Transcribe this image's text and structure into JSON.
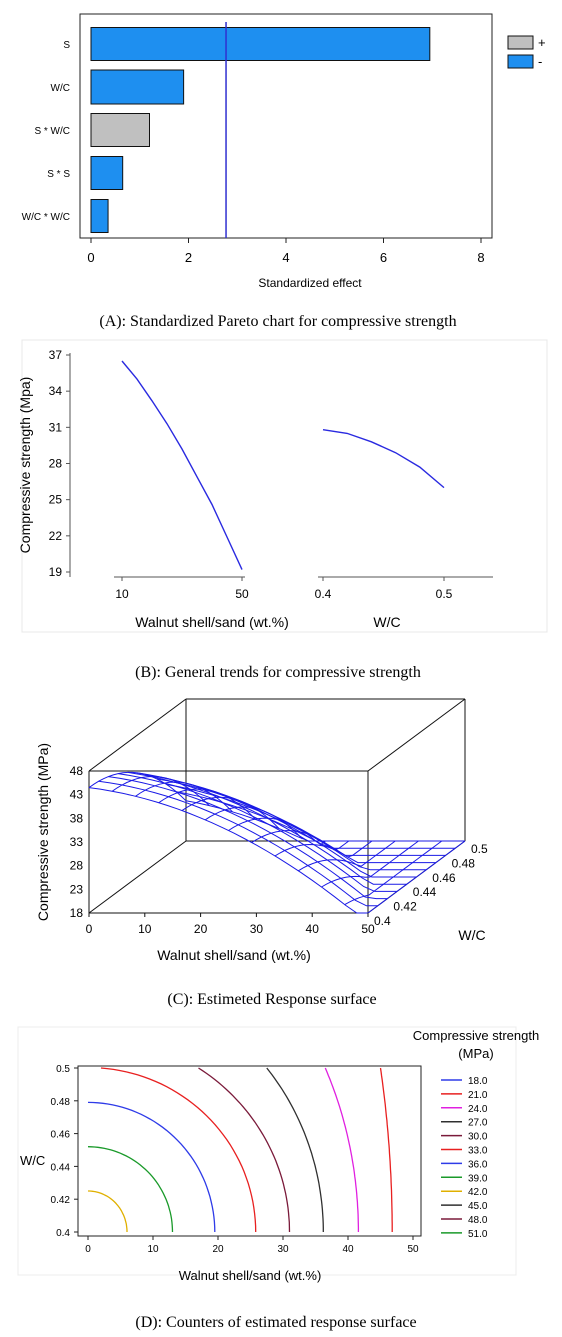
{
  "panels": {
    "a": {
      "caption": "(A): Standardized Pareto chart for compressive strength",
      "chart_data": {
        "type": "bar",
        "orientation": "horizontal",
        "categories": [
          "S",
          "W/C",
          "S * W/C",
          "S * S",
          "W/C * W/C"
        ],
        "values": [
          6.95,
          1.9,
          1.2,
          0.65,
          0.35
        ],
        "signs": [
          "-",
          "-",
          "+",
          "-",
          "-"
        ],
        "xlabel": "Standardized effect",
        "xlim": [
          0,
          8
        ],
        "xticks": [
          0,
          2,
          4,
          6,
          8
        ],
        "reference_line": 2.77,
        "legend": [
          {
            "label": "+",
            "color": "#c0c0c0"
          },
          {
            "label": "-",
            "color": "#1e8ff0"
          }
        ],
        "legend_position": "right"
      }
    },
    "b": {
      "caption": "(B): General trends for compressive strength",
      "chart_data": {
        "type": "line",
        "ylabel": "Compressive strength (Mpa)",
        "ylim": [
          19,
          37
        ],
        "yticks": [
          19,
          22,
          25,
          28,
          31,
          34,
          37
        ],
        "subplots": [
          {
            "xlabel": "Walnut shell/sand (wt.%)",
            "xticks": [
              10,
              50
            ],
            "x": [
              10,
              15,
              20,
              25,
              30,
              35,
              40,
              45,
              50
            ],
            "y": [
              36.5,
              35.0,
              33.2,
              31.3,
              29.2,
              26.9,
              24.6,
              21.9,
              19.2
            ]
          },
          {
            "xlabel": "W/C",
            "xticks": [
              0.4,
              0.5
            ],
            "x": [
              0.4,
              0.42,
              0.44,
              0.46,
              0.48,
              0.5
            ],
            "y": [
              30.8,
              30.5,
              29.8,
              28.9,
              27.7,
              26.0
            ]
          }
        ]
      }
    },
    "c": {
      "caption": "(C): Estimeted Response surface",
      "chart_data": {
        "type": "surface",
        "xlabel": "Walnut shell/sand (wt.%)",
        "ylabel": "W/C",
        "zlabel": "Compressive strength (MPa)",
        "xticks": [
          0,
          10,
          20,
          30,
          40,
          50
        ],
        "yticks": [
          0.4,
          0.42,
          0.44,
          0.46,
          0.48,
          0.5
        ],
        "zticks": [
          18,
          23,
          28,
          33,
          38,
          43,
          48
        ],
        "xlim": [
          0,
          50
        ],
        "ylim": [
          0.4,
          0.5
        ],
        "zlim": [
          18,
          48
        ],
        "surface_color": "#1a1ae6"
      }
    },
    "d": {
      "caption": "(D): Counters of estimated response surface",
      "chart_data": {
        "type": "contour",
        "xlabel": "Walnut shell/sand (wt.%)",
        "ylabel": "W/C",
        "xlim": [
          0,
          50
        ],
        "ylim": [
          0.4,
          0.5
        ],
        "xticks": [
          0,
          10,
          20,
          30,
          40,
          50
        ],
        "yticks": [
          0.4,
          0.42,
          0.44,
          0.46,
          0.48,
          0.5
        ],
        "legend_title": [
          "Compressive strength",
          "(MPa)"
        ],
        "levels": [
          {
            "label": "18.0",
            "color": "#2e3be8"
          },
          {
            "label": "21.0",
            "color": "#e82020"
          },
          {
            "label": "24.0",
            "color": "#e020e0"
          },
          {
            "label": "27.0",
            "color": "#303030"
          },
          {
            "label": "30.0",
            "color": "#7a1a3a"
          },
          {
            "label": "33.0",
            "color": "#e82020"
          },
          {
            "label": "36.0",
            "color": "#2e3be8"
          },
          {
            "label": "39.0",
            "color": "#1a9a2a"
          },
          {
            "label": "42.0",
            "color": "#e0b000"
          },
          {
            "label": "45.0",
            "color": "#303030"
          },
          {
            "label": "48.0",
            "color": "#7a1a3a"
          },
          {
            "label": "51.0",
            "color": "#1a9a2a"
          }
        ],
        "contours": [
          {
            "color": "#e0b000",
            "x_at_w04": 6.0,
            "w_at_x0": 0.425
          },
          {
            "color": "#1a9a2a",
            "x_at_w04": 13.0,
            "w_at_x0": 0.452
          },
          {
            "color": "#2e3be8",
            "x_at_w04": 19.5,
            "w_at_x0": 0.479
          },
          {
            "color": "#e82020",
            "x_at_w04": 25.8,
            "x_at_w05": 2.0
          },
          {
            "color": "#7a1a3a",
            "x_at_w04": 31.0,
            "x_at_w05": 17.0
          },
          {
            "color": "#303030",
            "x_at_w04": 36.2,
            "x_at_w05": 27.5
          },
          {
            "color": "#e020e0",
            "x_at_w04": 41.6,
            "x_at_w05": 36.5
          },
          {
            "color": "#e82020",
            "x_at_w04": 46.8,
            "x_at_w05": 45.0
          }
        ]
      }
    }
  }
}
